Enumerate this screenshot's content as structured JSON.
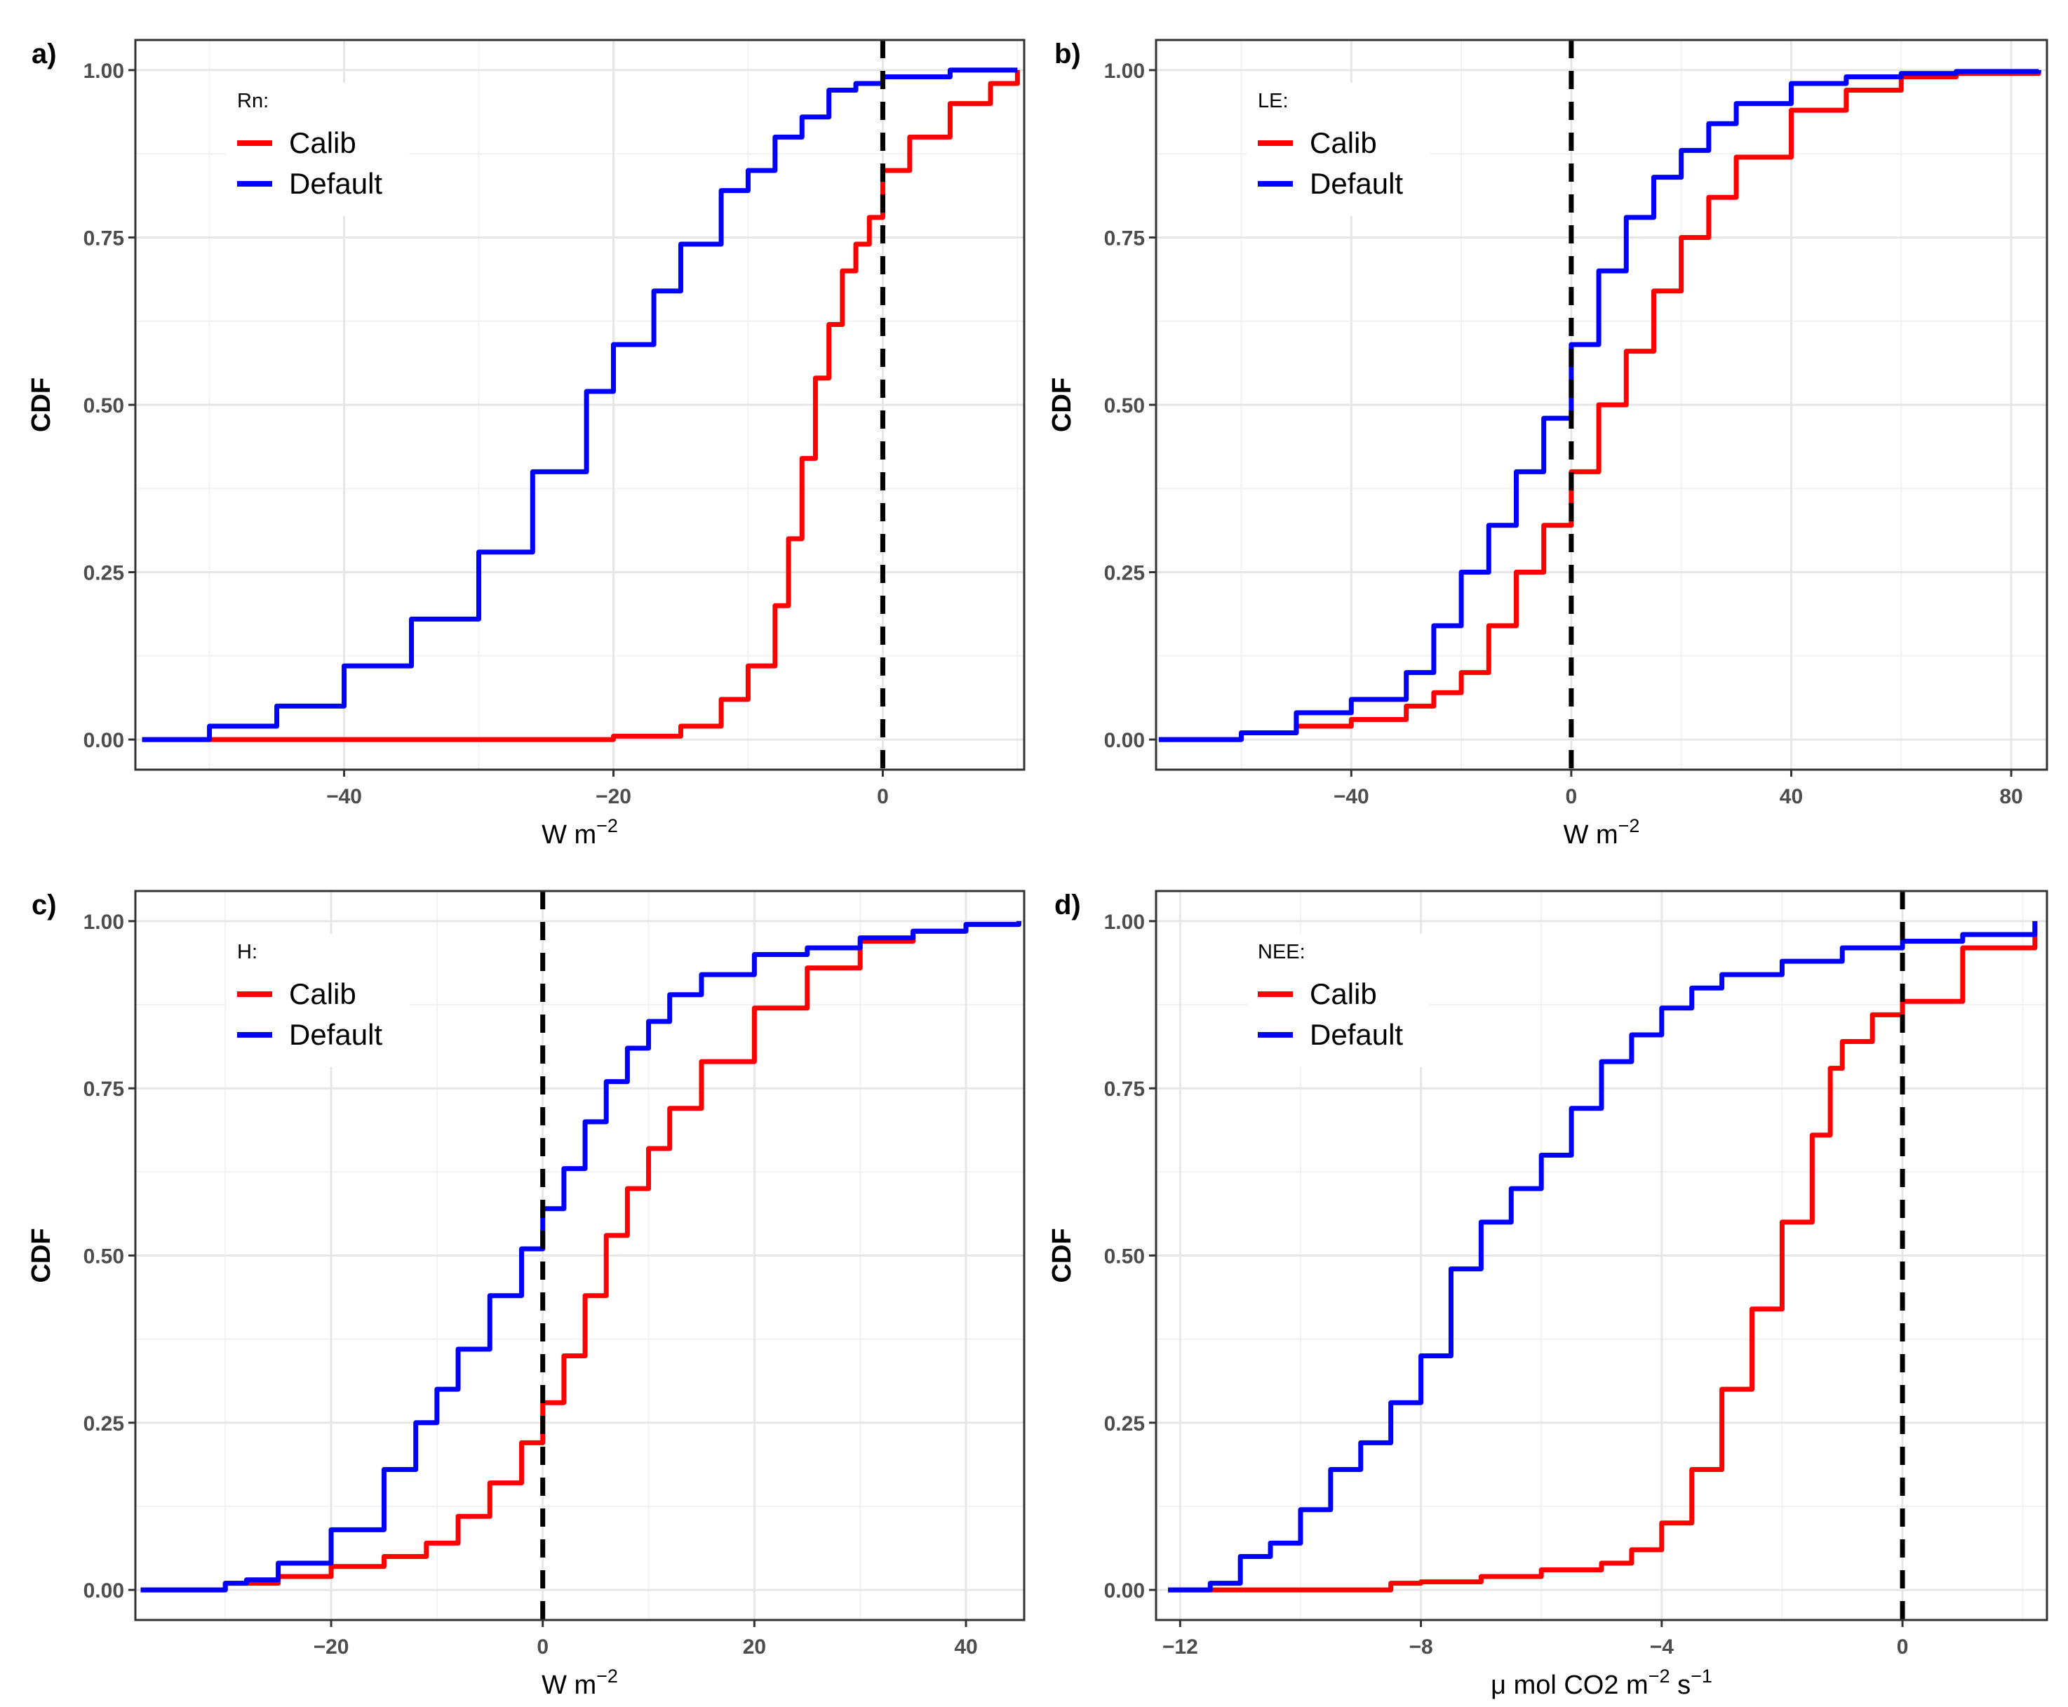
{
  "chart_data": [
    {
      "type": "line",
      "panel": "a)",
      "legend_title": "Rn:",
      "xlabel": "W m",
      "xlabel_sup": "−2",
      "xlabel_tail": "",
      "ylabel": "CDF",
      "xlim": [
        -55.5,
        10.5
      ],
      "ylim": [
        0,
        1
      ],
      "xticks": [
        -40,
        -20,
        0
      ],
      "xtick_labels": [
        "−40",
        "−20",
        "0"
      ],
      "yticks": [
        0,
        0.25,
        0.5,
        0.75,
        1
      ],
      "ytick_labels": [
        "0.00",
        "0.25",
        "0.50",
        "0.75",
        "1.00"
      ],
      "ref_line_x": 0,
      "legend_position": "top-left",
      "series": [
        {
          "name": "Calib",
          "color": "#ff0000",
          "x": [
            -55,
            -25,
            -20,
            -15,
            -12,
            -10,
            -8,
            -7,
            -6,
            -5,
            -4,
            -3,
            -2,
            -1,
            0,
            2,
            5,
            8,
            10
          ],
          "y": [
            0,
            0,
            0.005,
            0.02,
            0.06,
            0.11,
            0.2,
            0.3,
            0.42,
            0.54,
            0.62,
            0.7,
            0.74,
            0.78,
            0.85,
            0.9,
            0.95,
            0.98,
            1.0
          ]
        },
        {
          "name": "Default",
          "color": "#0000ff",
          "x": [
            -55,
            -50,
            -45,
            -40,
            -35,
            -30,
            -26,
            -22,
            -20,
            -17,
            -15,
            -12,
            -10,
            -8,
            -6,
            -4,
            -2,
            0,
            5,
            10
          ],
          "y": [
            0,
            0.02,
            0.05,
            0.11,
            0.18,
            0.28,
            0.4,
            0.52,
            0.59,
            0.67,
            0.74,
            0.82,
            0.85,
            0.9,
            0.93,
            0.97,
            0.98,
            0.99,
            1.0,
            1.0
          ]
        }
      ]
    },
    {
      "type": "line",
      "panel": "b)",
      "legend_title": "LE:",
      "xlabel": "W m",
      "xlabel_sup": "−2",
      "xlabel_tail": "",
      "ylabel": "CDF",
      "xlim": [
        -75.5,
        86.5
      ],
      "ylim": [
        0,
        1
      ],
      "xticks": [
        -40,
        0,
        40,
        80
      ],
      "xtick_labels": [
        "−40",
        "0",
        "40",
        "80"
      ],
      "yticks": [
        0,
        0.25,
        0.5,
        0.75,
        1
      ],
      "ytick_labels": [
        "0.00",
        "0.25",
        "0.50",
        "0.75",
        "1.00"
      ],
      "ref_line_x": 0,
      "legend_position": "top-left",
      "series": [
        {
          "name": "Calib",
          "color": "#ff0000",
          "x": [
            -75,
            -60,
            -50,
            -40,
            -30,
            -25,
            -20,
            -15,
            -10,
            -5,
            0,
            5,
            10,
            15,
            20,
            25,
            30,
            40,
            50,
            60,
            70,
            85
          ],
          "y": [
            0,
            0.01,
            0.02,
            0.03,
            0.05,
            0.07,
            0.1,
            0.17,
            0.25,
            0.32,
            0.4,
            0.5,
            0.58,
            0.67,
            0.75,
            0.81,
            0.87,
            0.94,
            0.97,
            0.99,
            0.995,
            1.0
          ]
        },
        {
          "name": "Default",
          "color": "#0000ff",
          "x": [
            -75,
            -60,
            -50,
            -40,
            -30,
            -25,
            -20,
            -15,
            -10,
            -5,
            0,
            5,
            10,
            15,
            20,
            25,
            30,
            40,
            50,
            60,
            70,
            85
          ],
          "y": [
            0,
            0.01,
            0.04,
            0.06,
            0.1,
            0.17,
            0.25,
            0.32,
            0.4,
            0.48,
            0.59,
            0.7,
            0.78,
            0.84,
            0.88,
            0.92,
            0.95,
            0.98,
            0.99,
            0.995,
            0.998,
            1.0
          ]
        }
      ]
    },
    {
      "type": "line",
      "panel": "c)",
      "legend_title": "H:",
      "xlabel": "W m",
      "xlabel_sup": "−2",
      "xlabel_tail": "",
      "ylabel": "CDF",
      "xlim": [
        -38.5,
        45.5
      ],
      "ylim": [
        0,
        1
      ],
      "xticks": [
        -20,
        0,
        20,
        40
      ],
      "xtick_labels": [
        "−20",
        "0",
        "20",
        "40"
      ],
      "yticks": [
        0,
        0.25,
        0.5,
        0.75,
        1
      ],
      "ytick_labels": [
        "0.00",
        "0.25",
        "0.50",
        "0.75",
        "1.00"
      ],
      "ref_line_x": 0,
      "legend_position": "top-left",
      "series": [
        {
          "name": "Calib",
          "color": "#ff0000",
          "x": [
            -38,
            -30,
            -25,
            -20,
            -15,
            -11,
            -8,
            -5,
            -2,
            0,
            2,
            4,
            6,
            8,
            10,
            12,
            15,
            20,
            25,
            30,
            35,
            40,
            45
          ],
          "y": [
            0,
            0.01,
            0.02,
            0.035,
            0.05,
            0.07,
            0.11,
            0.16,
            0.22,
            0.28,
            0.35,
            0.44,
            0.53,
            0.6,
            0.66,
            0.72,
            0.79,
            0.87,
            0.93,
            0.97,
            0.985,
            0.995,
            1.0
          ]
        },
        {
          "name": "Default",
          "color": "#0000ff",
          "x": [
            -38,
            -30,
            -28,
            -25,
            -20,
            -15,
            -12,
            -10,
            -8,
            -5,
            -2,
            0,
            2,
            4,
            6,
            8,
            10,
            12,
            15,
            20,
            25,
            30,
            35,
            40,
            45
          ],
          "y": [
            0,
            0.01,
            0.015,
            0.04,
            0.09,
            0.18,
            0.25,
            0.3,
            0.36,
            0.44,
            0.51,
            0.57,
            0.63,
            0.7,
            0.76,
            0.81,
            0.85,
            0.89,
            0.92,
            0.95,
            0.96,
            0.975,
            0.985,
            0.995,
            1.0
          ]
        }
      ]
    },
    {
      "type": "line",
      "panel": "d)",
      "legend_title": "NEE:",
      "xlabel": "μ mol CO2 m",
      "xlabel_sup": "−2",
      "xlabel_tail": " s",
      "xlabel_sup2": "−1",
      "ylabel": "CDF",
      "xlim": [
        -12.4,
        2.4
      ],
      "ylim": [
        0,
        1
      ],
      "xticks": [
        -12,
        -8,
        -4,
        0
      ],
      "xtick_labels": [
        "−12",
        "−8",
        "−4",
        "0"
      ],
      "yticks": [
        0,
        0.25,
        0.5,
        0.75,
        1
      ],
      "ytick_labels": [
        "0.00",
        "0.25",
        "0.50",
        "0.75",
        "1.00"
      ],
      "ref_line_x": 0,
      "legend_position": "top-left",
      "series": [
        {
          "name": "Calib",
          "color": "#ff0000",
          "x": [
            -12.2,
            -9,
            -8.5,
            -8,
            -7,
            -6,
            -5,
            -4.5,
            -4,
            -3.5,
            -3,
            -2.5,
            -2,
            -1.5,
            -1.2,
            -1,
            -0.5,
            0,
            1,
            2.2
          ],
          "y": [
            0,
            0,
            0.01,
            0.012,
            0.02,
            0.03,
            0.04,
            0.06,
            0.1,
            0.18,
            0.3,
            0.42,
            0.55,
            0.68,
            0.78,
            0.82,
            0.86,
            0.88,
            0.96,
            1.0
          ]
        },
        {
          "name": "Default",
          "color": "#0000ff",
          "x": [
            -12.2,
            -11.5,
            -11,
            -10.5,
            -10,
            -9.5,
            -9,
            -8.5,
            -8,
            -7.5,
            -7,
            -6.5,
            -6,
            -5.5,
            -5,
            -4.5,
            -4,
            -3.5,
            -3,
            -2,
            -1,
            0,
            1,
            2.2
          ],
          "y": [
            0,
            0.01,
            0.05,
            0.07,
            0.12,
            0.18,
            0.22,
            0.28,
            0.35,
            0.48,
            0.55,
            0.6,
            0.65,
            0.72,
            0.79,
            0.83,
            0.87,
            0.9,
            0.92,
            0.94,
            0.96,
            0.97,
            0.98,
            1.0
          ]
        }
      ]
    }
  ]
}
